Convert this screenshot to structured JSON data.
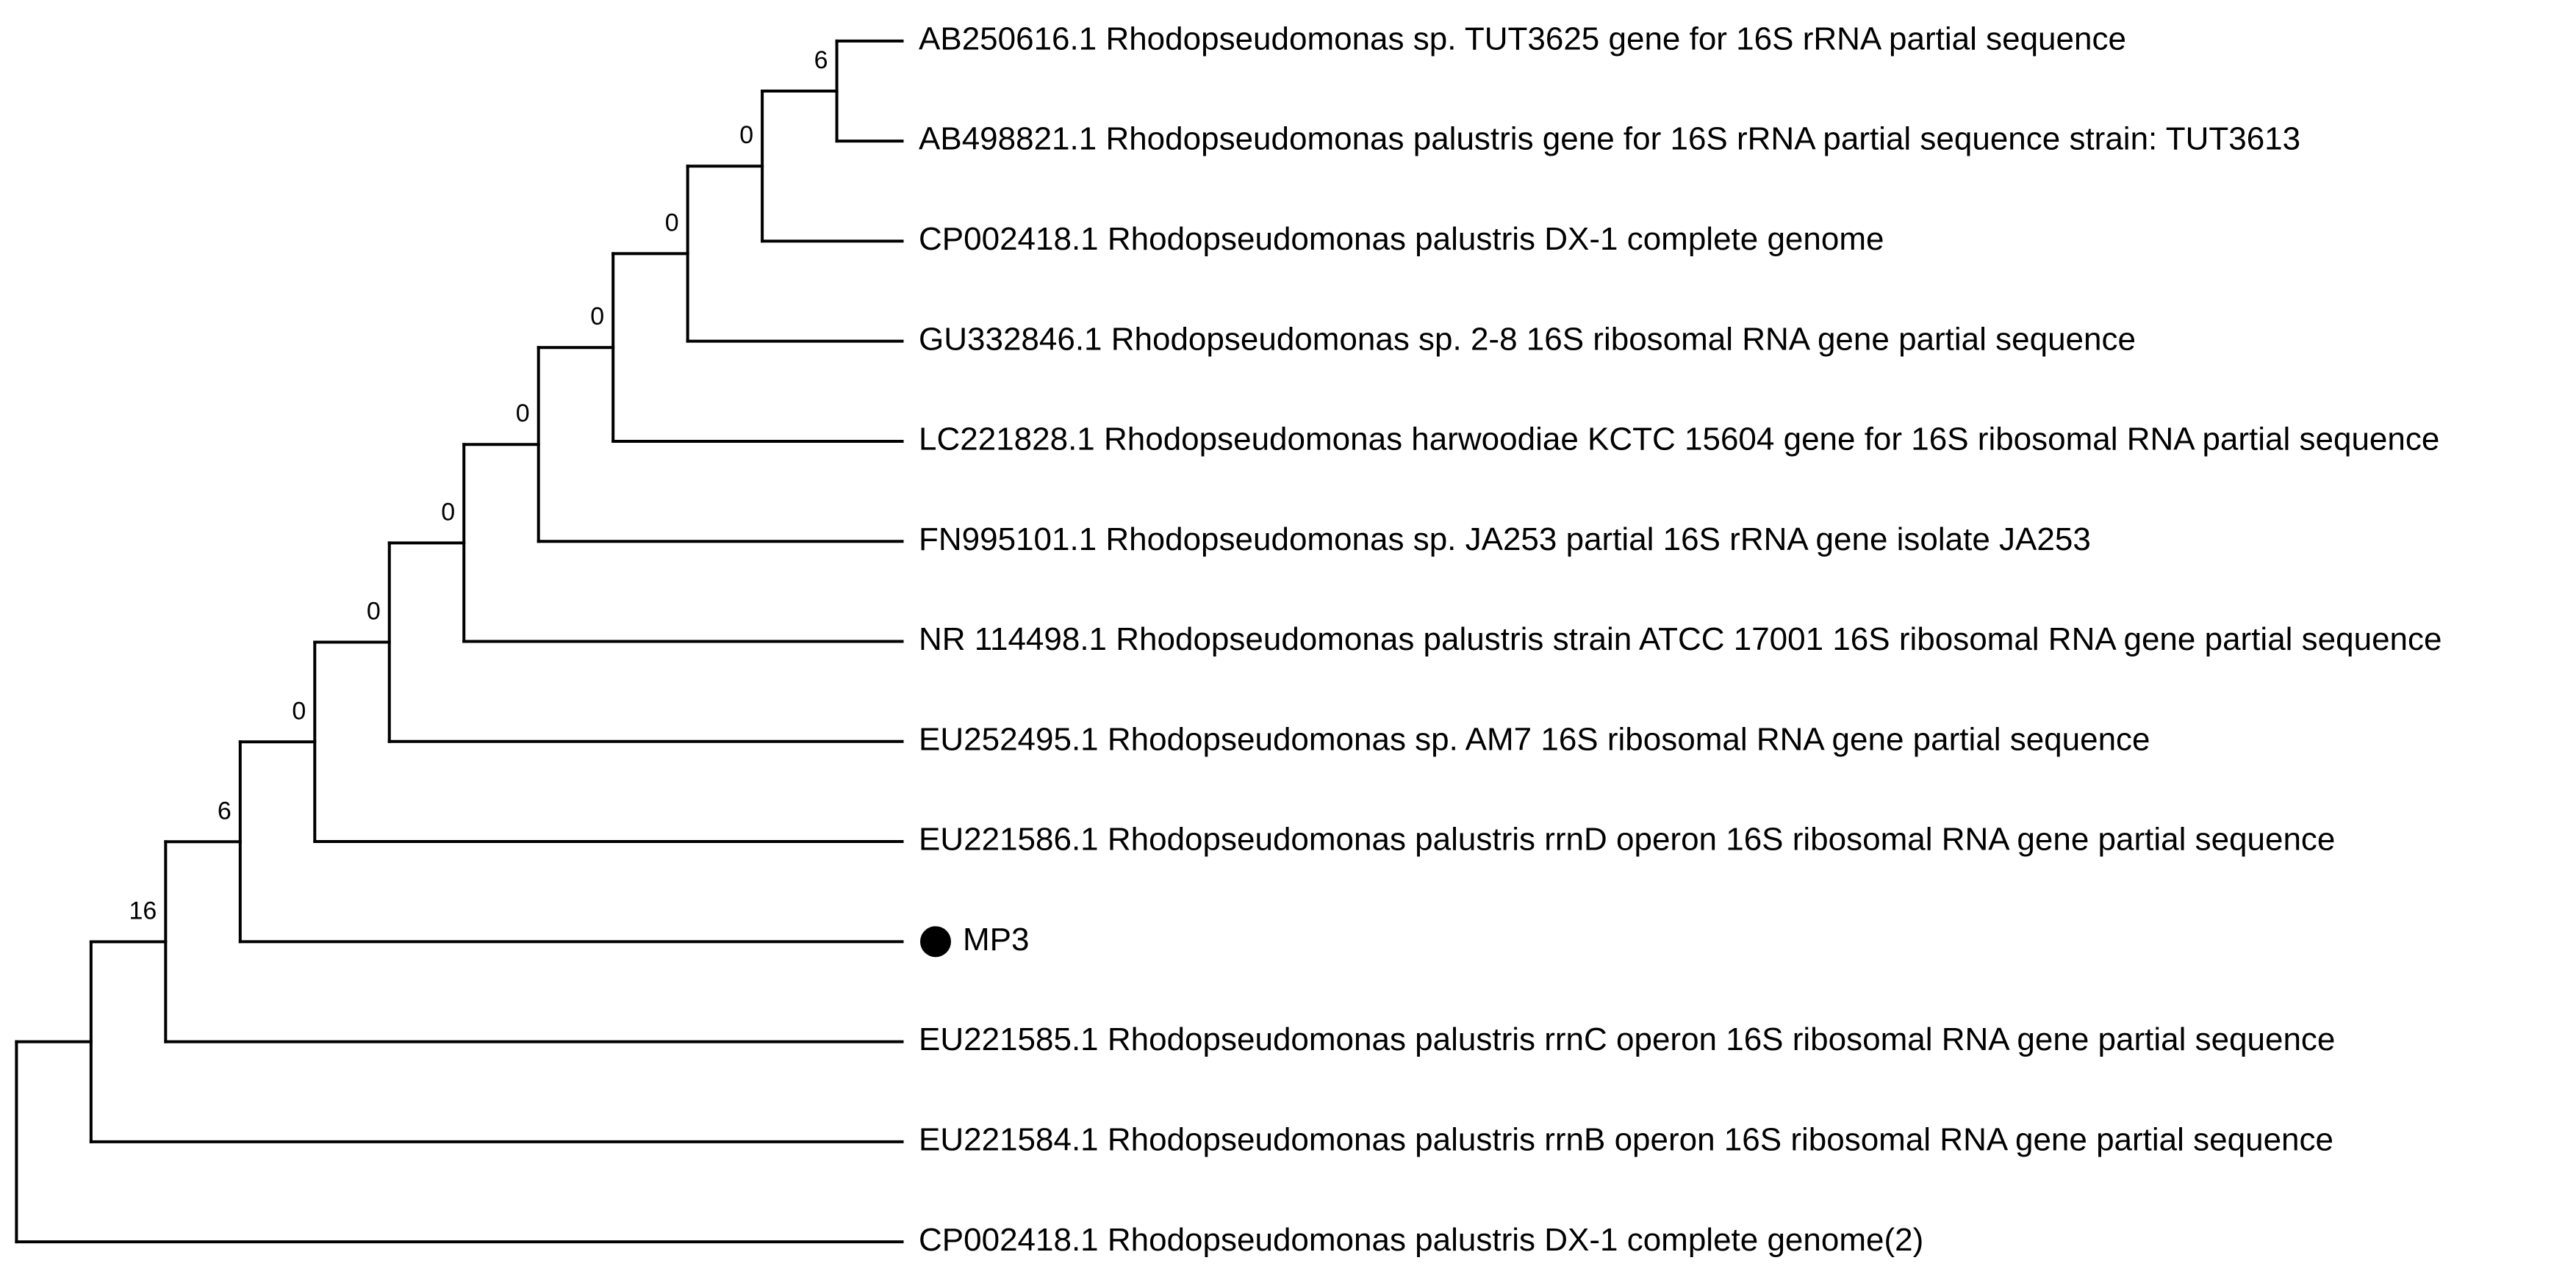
{
  "tree": {
    "children": [
      {
        "children": [
          {
            "support": 16,
            "children": [
              {
                "support": 6,
                "children": [
                  {
                    "support": 0,
                    "children": [
                      {
                        "support": 0,
                        "children": [
                          {
                            "support": 0,
                            "children": [
                              {
                                "support": 0,
                                "children": [
                                  {
                                    "support": 0,
                                    "children": [
                                      {
                                        "support": 0,
                                        "children": [
                                          {
                                            "support": 0,
                                            "children": [
                                              {
                                                "support": 6,
                                                "children": [
                                                  {
                                                    "label": "AB250616.1 Rhodopseudomonas sp. TUT3625 gene for 16S rRNA partial sequence"
                                                  },
                                                  {
                                                    "label": "AB498821.1 Rhodopseudomonas palustris gene for 16S rRNA partial sequence strain: TUT3613"
                                                  }
                                                ]
                                              },
                                              {
                                                "label": "CP002418.1 Rhodopseudomonas palustris DX-1 complete genome"
                                              }
                                            ]
                                          },
                                          {
                                            "label": "GU332846.1 Rhodopseudomonas sp. 2-8 16S ribosomal RNA gene partial sequence"
                                          }
                                        ]
                                      },
                                      {
                                        "label": "LC221828.1 Rhodopseudomonas harwoodiae KCTC 15604 gene for 16S ribosomal RNA partial sequence"
                                      }
                                    ]
                                  },
                                  {
                                    "label": "FN995101.1 Rhodopseudomonas sp. JA253 partial 16S rRNA gene isolate JA253"
                                  }
                                ]
                              },
                              {
                                "label": "NR 114498.1 Rhodopseudomonas palustris strain ATCC 17001 16S ribosomal RNA gene partial sequence"
                              }
                            ]
                          },
                          {
                            "label": "EU252495.1 Rhodopseudomonas sp. AM7 16S ribosomal RNA gene partial sequence"
                          }
                        ]
                      },
                      {
                        "label": "EU221586.1 Rhodopseudomonas palustris rrnD operon 16S ribosomal RNA gene partial sequence"
                      }
                    ]
                  },
                  {
                    "label": "MP3"
                  }
                ]
              },
              {
                "label": "EU221585.1 Rhodopseudomonas palustris rrnC operon 16S ribosomal RNA gene partial sequence"
              }
            ]
          },
          {
            "label": "EU221584.1 Rhodopseudomonas palustris rrnB operon 16S ribosomal RNA gene partial sequence"
          }
        ]
      },
      {
        "label": "CP002418.1 Rhodopseudomonas palustris DX-1 complete genome(2)"
      }
    ]
  }
}
